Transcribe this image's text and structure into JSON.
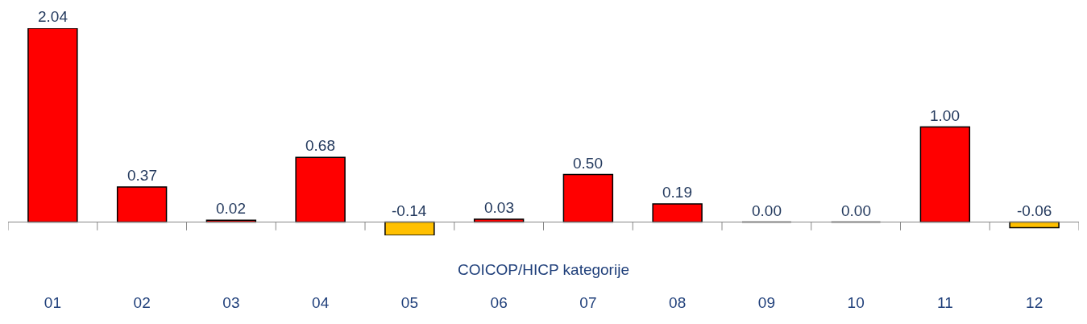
{
  "chart_data": {
    "type": "bar",
    "xlabel": "COICOP/HICP kategorije",
    "categories": [
      "01",
      "02",
      "03",
      "04",
      "05",
      "06",
      "07",
      "08",
      "09",
      "10",
      "11",
      "12"
    ],
    "values": [
      2.04,
      0.37,
      0.02,
      0.68,
      -0.14,
      0.03,
      0.5,
      0.19,
      0.0,
      0.0,
      1.0,
      -0.06
    ],
    "colors": [
      "#ff0000",
      "#ff0000",
      "#ff0000",
      "#ff0000",
      "#ffc000",
      "#ff0000",
      "#ff0000",
      "#ff0000",
      "#000000",
      "#000000",
      "#ff0000",
      "#ffc000"
    ],
    "value_labels": [
      "2.04",
      "0.37",
      "0.02",
      "0.68",
      "-0.14",
      "0.03",
      "0.50",
      "0.19",
      "0.00",
      "0.00",
      "1.00",
      "-0.06"
    ],
    "tick_labels": "x"
  }
}
